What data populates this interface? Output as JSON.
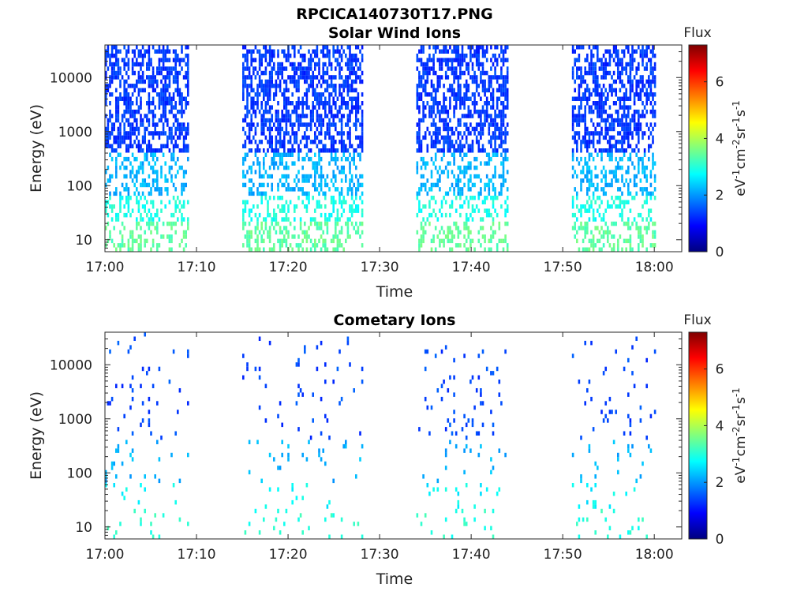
{
  "figure": {
    "filename": "RPCICA140730T17.PNG"
  },
  "colormap": [
    "#00007f",
    "#0000ff",
    "#007fff",
    "#00ffff",
    "#7fff7f",
    "#ffff00",
    "#ff7f00",
    "#ff0000",
    "#7f0000"
  ],
  "chart_data": [
    {
      "type": "heatmap",
      "title": "Solar Wind Ions",
      "xlabel": "Time",
      "ylabel": "Energy (eV)",
      "xlim": [
        "17:00",
        "18:03"
      ],
      "ylim": [
        6,
        40000
      ],
      "yscale": "log",
      "xticks": [
        "17:00",
        "17:10",
        "17:20",
        "17:30",
        "17:40",
        "17:50",
        "18:00"
      ],
      "yticks": [
        "10",
        "100",
        "1000",
        "10000"
      ],
      "grid": false,
      "colorbar": {
        "label": "Flux",
        "units": [
          "eV",
          "-1",
          "cm",
          "-2",
          "sr",
          "-1",
          "s",
          "-1"
        ],
        "ticks": [
          "0",
          "2",
          "4",
          "6"
        ],
        "range": [
          0,
          7.3
        ]
      },
      "data_blocks": [
        {
          "start": "17:00",
          "end": "17:09"
        },
        {
          "start": "17:15",
          "end": "17:28"
        },
        {
          "start": "17:34",
          "end": "17:44"
        },
        {
          "start": "17:51",
          "end": "18:00"
        }
      ],
      "flux_by_energy": [
        {
          "energy_range": [
            6,
            20
          ],
          "flux": 3.4
        },
        {
          "energy_range": [
            20,
            70
          ],
          "flux": 2.9
        },
        {
          "energy_range": [
            70,
            400
          ],
          "flux": 2.2
        },
        {
          "energy_range": [
            400,
            40000
          ],
          "flux": 1.3
        }
      ]
    },
    {
      "type": "heatmap",
      "title": "Cometary Ions",
      "xlabel": "Time",
      "ylabel": "Energy (eV)",
      "xlim": [
        "17:00",
        "18:03"
      ],
      "ylim": [
        6,
        40000
      ],
      "yscale": "log",
      "xticks": [
        "17:00",
        "17:10",
        "17:20",
        "17:30",
        "17:40",
        "17:50",
        "18:00"
      ],
      "yticks": [
        "10",
        "100",
        "1000",
        "10000"
      ],
      "grid": false,
      "colorbar": {
        "label": "Flux",
        "units": [
          "eV",
          "-1",
          "cm",
          "-2",
          "sr",
          "-1",
          "s",
          "-1"
        ],
        "ticks": [
          "0",
          "2",
          "4",
          "6"
        ],
        "range": [
          0,
          7.3
        ]
      },
      "data_blocks": [
        {
          "start": "17:00",
          "end": "17:09"
        },
        {
          "start": "17:15",
          "end": "17:28"
        },
        {
          "start": "17:34",
          "end": "17:44"
        },
        {
          "start": "17:51",
          "end": "18:00"
        }
      ],
      "flux_by_energy": [
        {
          "energy_range": [
            6,
            20
          ],
          "flux": 3.0
        },
        {
          "energy_range": [
            20,
            70
          ],
          "flux": 2.7
        },
        {
          "energy_range": [
            70,
            400
          ],
          "flux": 2.2
        },
        {
          "energy_range": [
            400,
            40000
          ],
          "flux": 1.4
        }
      ]
    }
  ]
}
